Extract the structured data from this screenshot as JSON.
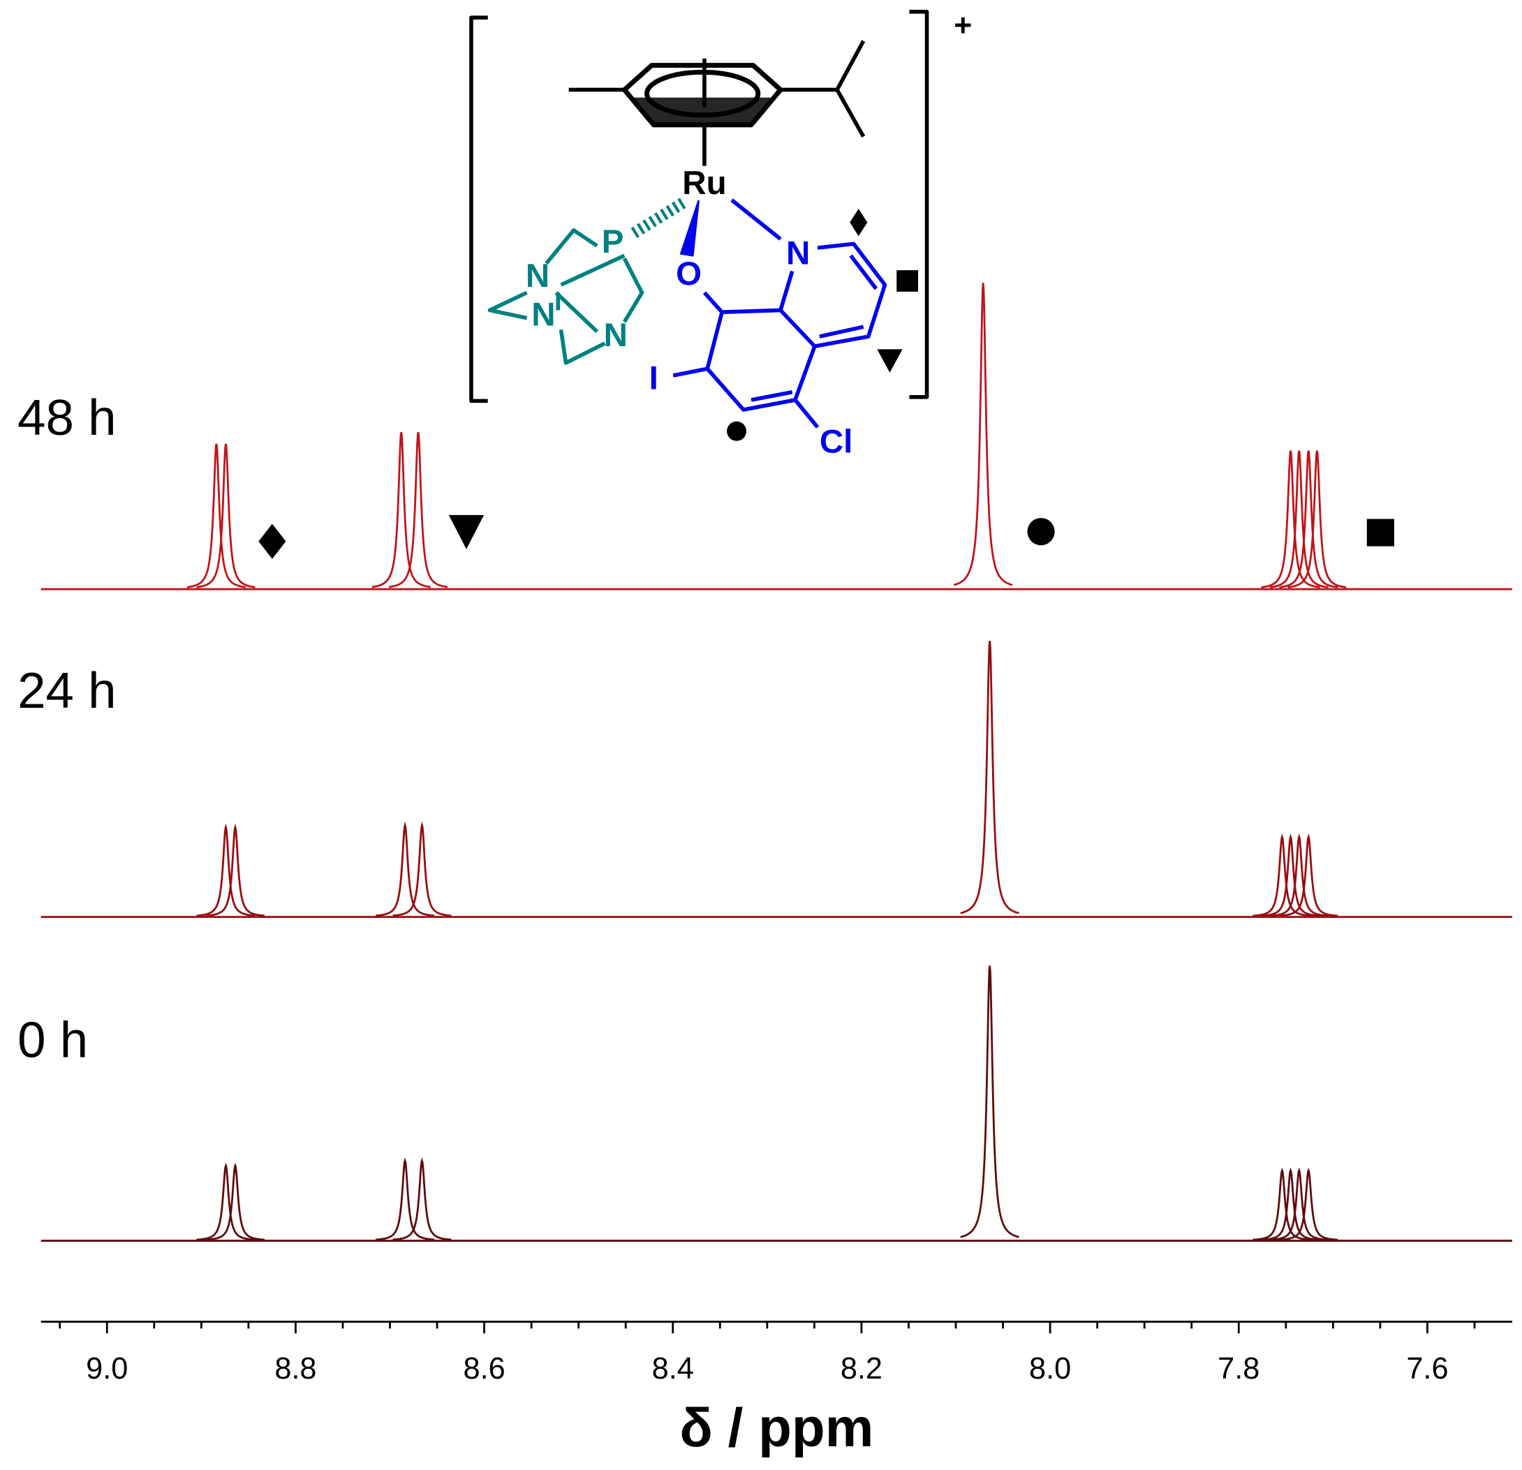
{
  "chart_data": {
    "type": "nmr",
    "xlabel": "δ / ppm",
    "xlim": [
      9.07,
      7.51
    ],
    "xticks": [
      {
        "value": 9,
        "label": "9.0"
      },
      8.8,
      8.6,
      8.4,
      8.2,
      {
        "value": 8,
        "label": "8.0"
      },
      7.8,
      7.6
    ],
    "xminorticks": [
      9.05,
      8.95,
      8.9,
      8.85,
      8.75,
      8.7,
      8.65,
      8.55,
      8.5,
      8.45,
      8.35,
      8.3,
      8.25,
      8.15,
      8.1,
      8.05,
      7.95,
      7.9,
      7.85,
      7.75,
      7.7,
      7.65,
      7.55
    ],
    "series": [
      {
        "name": "48 h",
        "color": "#c0141b",
        "x": [
          8.884,
          8.874,
          8.688,
          8.67,
          8.071,
          7.745,
          7.736,
          7.726,
          7.717
        ],
        "values": [
          149,
          149,
          161,
          161,
          314,
          142,
          142,
          142,
          142
        ]
      },
      {
        "name": "24 h",
        "color": "#970d12",
        "x": [
          8.874,
          8.864,
          8.684,
          8.666,
          8.064,
          7.754,
          7.745,
          7.736,
          7.726
        ],
        "values": [
          92,
          92,
          94,
          94,
          283,
          82,
          82,
          82,
          82
        ]
      },
      {
        "name": "0 h",
        "color": "#5e0c0e",
        "x": [
          8.874,
          8.864,
          8.684,
          8.666,
          8.064,
          7.754,
          7.745,
          7.736,
          7.726
        ],
        "values": [
          77,
          77,
          82,
          82,
          282,
          72,
          72,
          72,
          72
        ]
      }
    ]
  },
  "structure": {
    "charge": "+",
    "atoms": [
      "Ru",
      "P",
      "N",
      "N",
      "N",
      "O",
      "N",
      "I",
      "Cl"
    ]
  }
}
